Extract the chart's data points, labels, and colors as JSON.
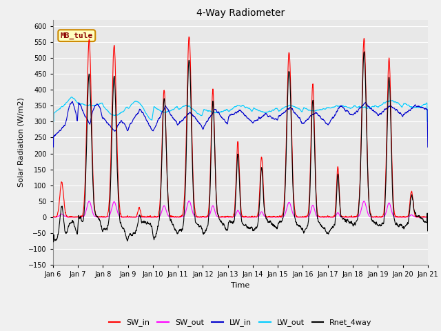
{
  "title": "4-Way Radiometer",
  "xlabel": "Time",
  "ylabel": "Solar Radiation (W/m2)",
  "ylim": [
    -150,
    620
  ],
  "yticks": [
    -150,
    -100,
    -50,
    0,
    50,
    100,
    150,
    200,
    250,
    300,
    350,
    400,
    450,
    500,
    550,
    600
  ],
  "xticklabels": [
    "Jan 6",
    "Jan 7",
    "Jan 8",
    "Jan 9",
    "Jan 10",
    "Jan 11",
    "Jan 12",
    "Jan 13",
    "Jan 14",
    "Jan 15",
    "Jan 16",
    "Jan 17",
    "Jan 18",
    "Jan 19",
    "Jan 20",
    "Jan 21"
  ],
  "colors": {
    "SW_in": "#FF0000",
    "SW_out": "#FF00FF",
    "LW_in": "#0000CC",
    "LW_out": "#00CCFF",
    "Rnet_4way": "#000000"
  },
  "legend_label": "MB_tule",
  "legend_box_facecolor": "#FFFFC0",
  "legend_box_edgecolor": "#CC8800",
  "plot_bg": "#E8E8E8",
  "fig_bg": "#F0F0F0",
  "grid_color": "#FFFFFF",
  "linewidth": 0.8,
  "n_points": 2400,
  "figsize": [
    6.4,
    4.8
  ],
  "dpi": 100
}
